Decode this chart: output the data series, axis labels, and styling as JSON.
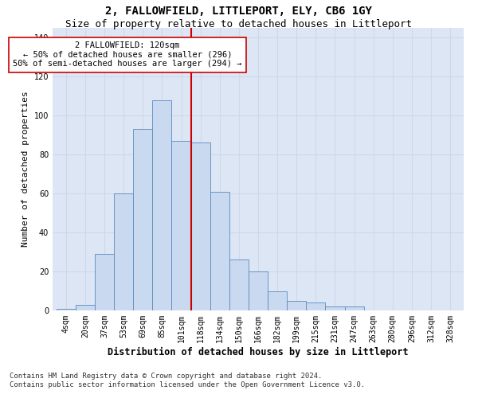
{
  "title": "2, FALLOWFIELD, LITTLEPORT, ELY, CB6 1GY",
  "subtitle": "Size of property relative to detached houses in Littleport",
  "xlabel": "Distribution of detached houses by size in Littleport",
  "ylabel": "Number of detached properties",
  "bar_values": [
    1,
    3,
    29,
    60,
    93,
    108,
    87,
    86,
    61,
    26,
    20,
    10,
    5,
    4,
    2,
    2
  ],
  "bar_labels": [
    "4sqm",
    "20sqm",
    "37sqm",
    "53sqm",
    "69sqm",
    "85sqm",
    "101sqm",
    "118sqm",
    "134sqm",
    "150sqm",
    "166sqm",
    "182sqm",
    "199sqm",
    "215sqm",
    "231sqm",
    "247sqm",
    "263sqm",
    "280sqm",
    "296sqm",
    "312sqm",
    "328sqm"
  ],
  "bar_color": "#c9d9f0",
  "bar_edge_color": "#5a8abf",
  "vline_color": "#cc0000",
  "annotation_text": "2 FALLOWFIELD: 120sqm\n← 50% of detached houses are smaller (296)\n50% of semi-detached houses are larger (294) →",
  "annotation_box_color": "#ffffff",
  "annotation_box_edge": "#cc0000",
  "ylim": [
    0,
    145
  ],
  "yticks": [
    0,
    20,
    40,
    60,
    80,
    100,
    120,
    140
  ],
  "grid_color": "#d0d8e8",
  "background_color": "#dce6f5",
  "footnote": "Contains HM Land Registry data © Crown copyright and database right 2024.\nContains public sector information licensed under the Open Government Licence v3.0.",
  "title_fontsize": 10,
  "subtitle_fontsize": 9,
  "xlabel_fontsize": 8.5,
  "ylabel_fontsize": 8,
  "tick_fontsize": 7,
  "annotation_fontsize": 7.5,
  "footnote_fontsize": 6.5
}
